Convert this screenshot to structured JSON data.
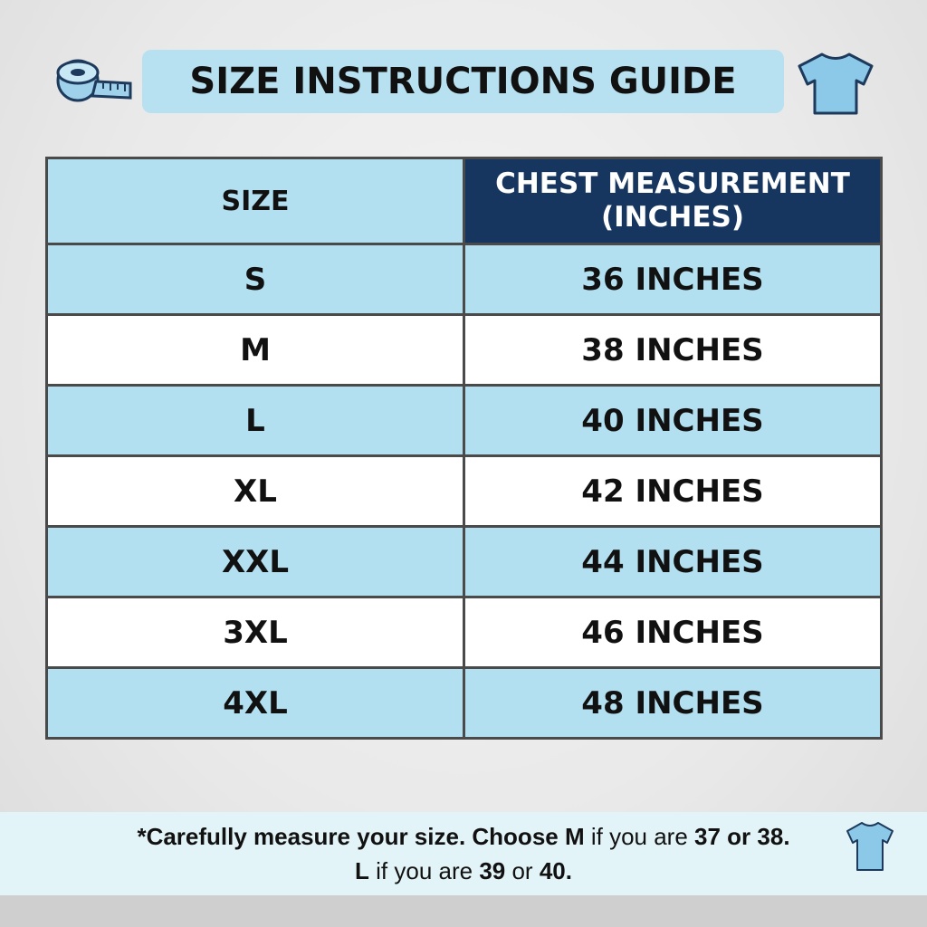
{
  "header": {
    "title": "SIZE INSTRUCTIONS GUIDE"
  },
  "table": {
    "headers": [
      "SIZE",
      "CHEST MEASUREMENT (INCHES)"
    ],
    "rows": [
      [
        "S",
        "36 INCHES"
      ],
      [
        "M",
        "38 INCHES"
      ],
      [
        "L",
        "40 INCHES"
      ],
      [
        "XL",
        "42 INCHES"
      ],
      [
        "XXL",
        "44 INCHES"
      ],
      [
        "3XL",
        "46 INCHES"
      ],
      [
        "4XL",
        "48 INCHES"
      ]
    ]
  },
  "footer": {
    "lines": [
      [
        {
          "text": "*Carefully measure your size. Choose M",
          "bold": true
        },
        {
          "text": " if you are ",
          "bold": false
        },
        {
          "text": "37 or 38.",
          "bold": true
        }
      ],
      [
        {
          "text": "L",
          "bold": true
        },
        {
          "text": " if you are ",
          "bold": false
        },
        {
          "text": "39",
          "bold": true
        },
        {
          "text": " or ",
          "bold": false
        },
        {
          "text": "40.",
          "bold": true
        }
      ]
    ]
  }
}
